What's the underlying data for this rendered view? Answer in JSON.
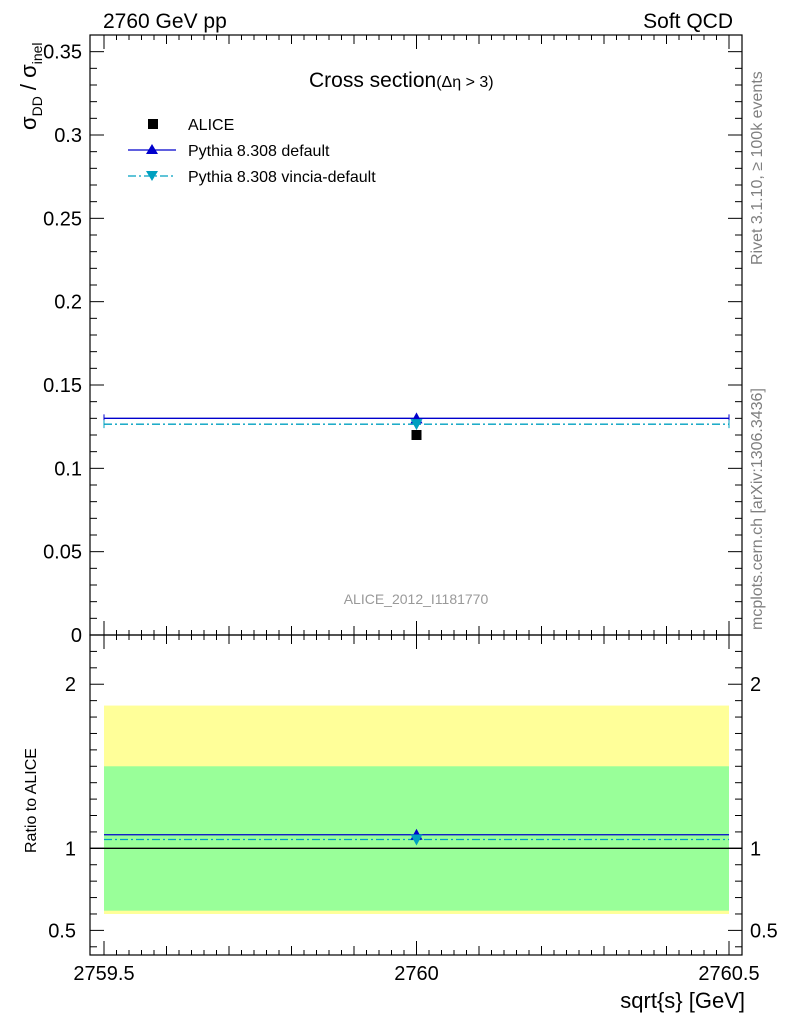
{
  "header": {
    "left": "2760 GeV pp",
    "right": "Soft QCD"
  },
  "side_labels": {
    "rivet": "Rivet 3.1.10, ≥ 100k events",
    "mcplots": "mcplots.cern.ch [arXiv:1306.3436]"
  },
  "chart_data": [
    {
      "type": "scatter",
      "title": "Cross section",
      "title_suffix": "(Δη > 3)",
      "ylabel": "σDD / σinel",
      "ylabel_parts": {
        "sigma": "σ",
        "num_sub": "DD",
        "slash": " / ",
        "den_sub": "inel"
      },
      "analysis_tag": "ALICE_2012_I1181770",
      "xlim": [
        2759.5,
        2760.5
      ],
      "ylim": [
        0,
        0.36
      ],
      "yticks": [
        0,
        0.05,
        0.1,
        0.15,
        0.2,
        0.25,
        0.3,
        0.35
      ],
      "ytick_labels": [
        "0",
        "0.05",
        "0.1",
        "0.15",
        "0.2",
        "0.25",
        "0.3",
        "0.35"
      ],
      "legend_position": "top-left",
      "series": [
        {
          "name": "ALICE",
          "kind": "data",
          "marker": "square",
          "color": "#000000",
          "x": [
            2760
          ],
          "y": [
            0.12
          ]
        },
        {
          "name": "Pythia 8.308 default",
          "kind": "mc",
          "marker": "triangle-up",
          "line": "solid",
          "color": "#0000cc",
          "x": [
            2760
          ],
          "y": [
            0.13
          ]
        },
        {
          "name": "Pythia 8.308 vincia-default",
          "kind": "mc",
          "marker": "triangle-down",
          "line": "dash-dot",
          "color": "#00a0c0",
          "x": [
            2760
          ],
          "y": [
            0.1265
          ]
        }
      ]
    },
    {
      "type": "scatter",
      "ylabel": "Ratio to ALICE",
      "xlabel": "sqrt{s} [GeV]",
      "xlim": [
        2759.5,
        2760.5
      ],
      "xticks": [
        2759.5,
        2760,
        2760.5
      ],
      "xtick_labels": [
        "2759.5",
        "2760",
        "2760.5"
      ],
      "ylim": [
        0.35,
        2.3
      ],
      "yticks": [
        0.5,
        1,
        2
      ],
      "ytick_labels": [
        "0.5",
        "1",
        "2"
      ],
      "bands": [
        {
          "name": "outer uncertainty",
          "color": "#ffff99",
          "low": 0.6,
          "high": 1.87
        },
        {
          "name": "inner uncertainty",
          "color": "#99ff99",
          "low": 0.62,
          "high": 1.5
        }
      ],
      "reference_line": 1,
      "series": [
        {
          "name": "Pythia 8.308 default",
          "color": "#0000cc",
          "marker": "triangle-up",
          "x": [
            2760
          ],
          "y": [
            1.083
          ]
        },
        {
          "name": "Pythia 8.308 vincia-default",
          "color": "#00a0c0",
          "marker": "triangle-down",
          "x": [
            2760
          ],
          "y": [
            1.054
          ]
        }
      ]
    }
  ]
}
